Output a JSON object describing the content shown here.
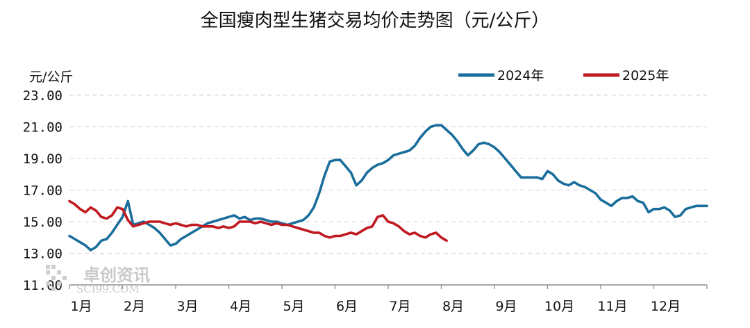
{
  "chart_data": {
    "type": "line",
    "title": "全国瘦肉型生猪交易均价走势图（元/公斤）",
    "ylabel": "元/公斤",
    "ylim": [
      11,
      23
    ],
    "yticks": [
      "23.00",
      "21.00",
      "19.00",
      "17.00",
      "15.00",
      "13.00",
      "11.00"
    ],
    "ytick_values": [
      23,
      21,
      19,
      17,
      15,
      13,
      11
    ],
    "categories": [
      "1月",
      "2月",
      "3月",
      "4月",
      "5月",
      "6月",
      "7月",
      "8月",
      "9月",
      "10月",
      "11月",
      "12月"
    ],
    "grid": true,
    "legend_position": "top-right",
    "series": [
      {
        "name": "2024年",
        "color": "#1a6e9c",
        "x": [
          0,
          0.1,
          0.2,
          0.3,
          0.4,
          0.5,
          0.6,
          0.7,
          0.8,
          0.9,
          1.0,
          1.1,
          1.2,
          1.3,
          1.4,
          1.5,
          1.6,
          1.7,
          1.8,
          1.9,
          2.0,
          2.1,
          2.2,
          2.3,
          2.4,
          2.5,
          2.6,
          2.7,
          2.8,
          2.9,
          3.0,
          3.1,
          3.2,
          3.3,
          3.4,
          3.5,
          3.6,
          3.7,
          3.8,
          3.9,
          4.0,
          4.1,
          4.2,
          4.3,
          4.4,
          4.5,
          4.6,
          4.7,
          4.8,
          4.9,
          5.0,
          5.1,
          5.2,
          5.3,
          5.4,
          5.5,
          5.6,
          5.7,
          5.8,
          5.9,
          6.0,
          6.1,
          6.2,
          6.3,
          6.4,
          6.5,
          6.6,
          6.7,
          6.8,
          6.9,
          7.0,
          7.1,
          7.2,
          7.3,
          7.4,
          7.5,
          7.6,
          7.7,
          7.8,
          7.9,
          8.0,
          8.1,
          8.2,
          8.3,
          8.4,
          8.5,
          8.6,
          8.7,
          8.8,
          8.9,
          9.0,
          9.1,
          9.2,
          9.3,
          9.4,
          9.5,
          9.6,
          9.7,
          9.8,
          9.9,
          10.0,
          10.1,
          10.2,
          10.3,
          10.4,
          10.5,
          10.6,
          10.7,
          10.8,
          10.9,
          11.0,
          11.1,
          11.2,
          11.3,
          11.4,
          11.5,
          11.6,
          11.7,
          11.8,
          11.9,
          12.0
        ],
        "values": [
          14.1,
          13.9,
          13.7,
          13.5,
          13.2,
          13.4,
          13.8,
          13.9,
          14.3,
          14.8,
          15.3,
          16.3,
          14.8,
          14.9,
          15.0,
          14.8,
          14.6,
          14.3,
          13.9,
          13.5,
          13.6,
          13.9,
          14.1,
          14.3,
          14.5,
          14.7,
          14.9,
          15.0,
          15.1,
          15.2,
          15.3,
          15.4,
          15.2,
          15.3,
          15.1,
          15.2,
          15.2,
          15.1,
          15.0,
          15.0,
          14.9,
          14.8,
          14.9,
          15.0,
          15.1,
          15.4,
          15.9,
          16.8,
          17.9,
          18.8,
          18.9,
          18.9,
          18.5,
          18.1,
          17.3,
          17.6,
          18.1,
          18.4,
          18.6,
          18.7,
          18.9,
          19.2,
          19.3,
          19.4,
          19.5,
          19.8,
          20.3,
          20.7,
          21.0,
          21.1,
          21.1,
          20.8,
          20.5,
          20.1,
          19.6,
          19.2,
          19.5,
          19.9,
          20.0,
          19.9,
          19.7,
          19.4,
          19.0,
          18.6,
          18.2,
          17.8,
          17.8,
          17.8,
          17.8,
          17.7,
          18.2,
          18.0,
          17.6,
          17.4,
          17.3,
          17.5,
          17.3,
          17.2,
          17.0,
          16.8,
          16.4,
          16.2,
          16.0,
          16.3,
          16.5,
          16.5,
          16.6,
          16.3,
          16.2,
          15.6,
          15.8,
          15.8,
          15.9,
          15.7,
          15.3,
          15.4,
          15.8,
          15.9,
          16.0,
          16.0,
          16.0
        ]
      },
      {
        "name": "2025年",
        "color": "#c01920",
        "x": [
          0,
          0.1,
          0.2,
          0.3,
          0.4,
          0.5,
          0.6,
          0.7,
          0.8,
          0.9,
          1.0,
          1.1,
          1.2,
          1.3,
          1.4,
          1.5,
          1.6,
          1.7,
          1.8,
          1.9,
          2.0,
          2.1,
          2.2,
          2.3,
          2.4,
          2.5,
          2.6,
          2.7,
          2.8,
          2.9,
          3.0,
          3.1,
          3.2,
          3.3,
          3.4,
          3.5,
          3.6,
          3.7,
          3.8,
          3.9,
          4.0,
          4.1,
          4.2,
          4.3,
          4.4,
          4.5,
          4.6,
          4.7,
          4.8,
          4.9,
          5.0,
          5.1,
          5.2,
          5.3,
          5.4,
          5.5,
          5.6,
          5.7,
          5.8,
          5.9,
          6.0,
          6.1,
          6.2,
          6.3,
          6.4,
          6.5,
          6.6,
          6.7,
          6.8,
          6.9,
          7.0,
          7.1
        ],
        "values": [
          16.3,
          16.1,
          15.8,
          15.6,
          15.9,
          15.7,
          15.3,
          15.2,
          15.4,
          15.9,
          15.8,
          15.1,
          14.7,
          14.8,
          14.9,
          15.0,
          15.0,
          15.0,
          14.9,
          14.8,
          14.9,
          14.8,
          14.7,
          14.8,
          14.8,
          14.7,
          14.7,
          14.7,
          14.6,
          14.7,
          14.6,
          14.7,
          15.0,
          15.0,
          15.0,
          14.9,
          15.0,
          14.9,
          14.8,
          14.9,
          14.8,
          14.8,
          14.7,
          14.6,
          14.5,
          14.4,
          14.3,
          14.3,
          14.1,
          14.0,
          14.1,
          14.1,
          14.2,
          14.3,
          14.2,
          14.4,
          14.6,
          14.7,
          15.3,
          15.4,
          15.0,
          14.9,
          14.7,
          14.4,
          14.2,
          14.3,
          14.1,
          14.0,
          14.2,
          14.3,
          14.0,
          13.8
        ]
      }
    ]
  },
  "watermark": {
    "brand": "卓创资讯",
    "site": "SCI99.COM"
  }
}
